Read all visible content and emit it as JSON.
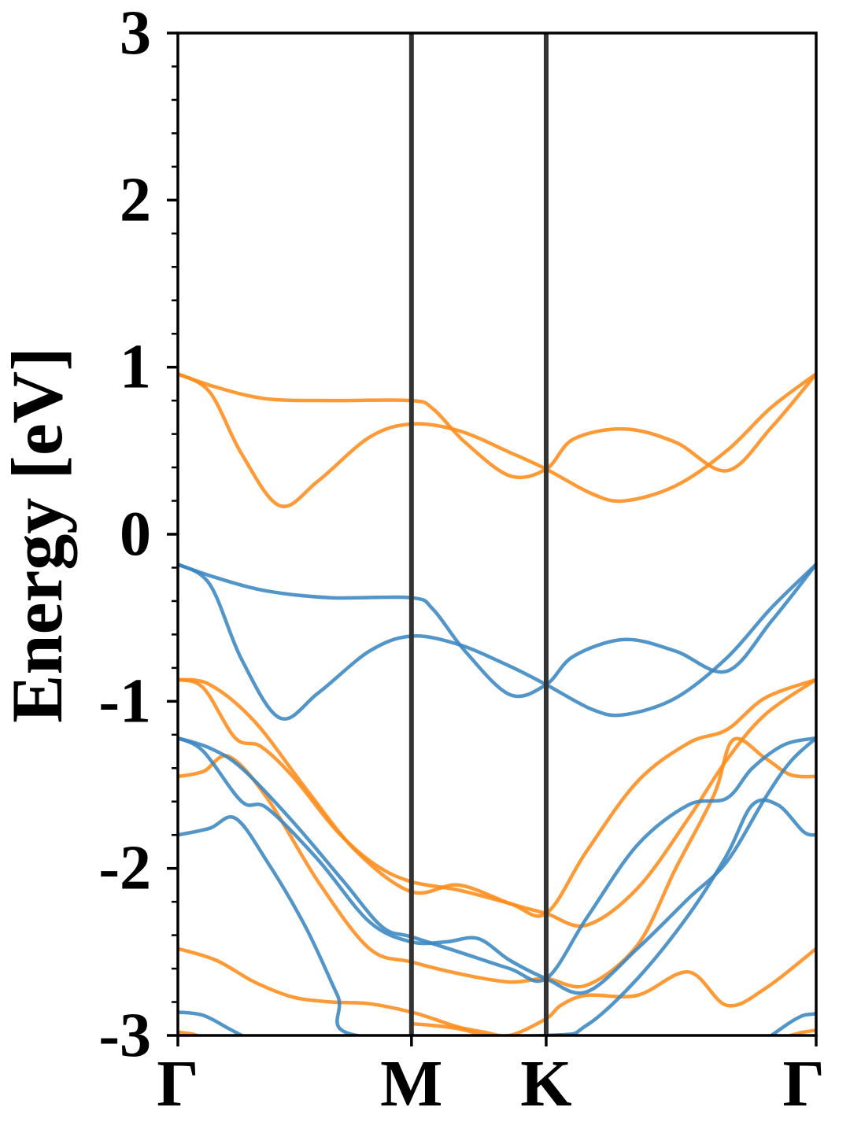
{
  "chart_data": {
    "type": "line",
    "ylabel": "Energy [eV]",
    "xlabel": "",
    "ylim": [
      -3,
      3
    ],
    "xlim": [
      0,
      1
    ],
    "grid": false,
    "legend": "none",
    "yticks": [
      "-3",
      "-2",
      "-1",
      "0",
      "1",
      "2",
      "3"
    ],
    "ytick_values": [
      -3,
      -2,
      -1,
      0,
      1,
      2,
      3
    ],
    "yminor_step": 0.2,
    "kpoints": [
      {
        "label": "Γ",
        "x": 0.0
      },
      {
        "label": "M",
        "x": 0.366
      },
      {
        "label": "K",
        "x": 0.577
      },
      {
        "label": "Γ",
        "x": 1.0
      }
    ],
    "colors": {
      "conduction": "#ff8c1a",
      "valence": "#3a86c2",
      "kpoint_line": "#333333",
      "axis": "#000000"
    },
    "series": [
      {
        "group": "conduction",
        "points": [
          [
            0,
            0.96
          ],
          [
            0.06,
            0.88
          ],
          [
            0.14,
            0.81
          ],
          [
            0.24,
            0.8
          ],
          [
            0.366,
            0.8
          ],
          [
            0.4,
            0.75
          ],
          [
            0.45,
            0.55
          ],
          [
            0.52,
            0.35
          ],
          [
            0.577,
            0.39
          ],
          [
            0.62,
            0.57
          ],
          [
            0.7,
            0.63
          ],
          [
            0.78,
            0.55
          ],
          [
            0.86,
            0.38
          ],
          [
            0.93,
            0.64
          ],
          [
            1.0,
            0.96
          ]
        ]
      },
      {
        "group": "conduction",
        "points": [
          [
            0,
            0.96
          ],
          [
            0.05,
            0.85
          ],
          [
            0.1,
            0.48
          ],
          [
            0.16,
            0.17
          ],
          [
            0.22,
            0.32
          ],
          [
            0.3,
            0.58
          ],
          [
            0.366,
            0.66
          ],
          [
            0.44,
            0.62
          ],
          [
            0.52,
            0.49
          ],
          [
            0.577,
            0.39
          ],
          [
            0.65,
            0.24
          ],
          [
            0.7,
            0.2
          ],
          [
            0.78,
            0.29
          ],
          [
            0.86,
            0.5
          ],
          [
            0.93,
            0.76
          ],
          [
            1.0,
            0.96
          ]
        ]
      },
      {
        "group": "valence",
        "points": [
          [
            0,
            -0.18
          ],
          [
            0.06,
            -0.26
          ],
          [
            0.14,
            -0.34
          ],
          [
            0.24,
            -0.38
          ],
          [
            0.366,
            -0.38
          ],
          [
            0.4,
            -0.45
          ],
          [
            0.45,
            -0.7
          ],
          [
            0.52,
            -0.96
          ],
          [
            0.577,
            -0.9
          ],
          [
            0.62,
            -0.73
          ],
          [
            0.7,
            -0.63
          ],
          [
            0.78,
            -0.7
          ],
          [
            0.86,
            -0.82
          ],
          [
            0.93,
            -0.52
          ],
          [
            1.0,
            -0.18
          ]
        ]
      },
      {
        "group": "valence",
        "points": [
          [
            0,
            -0.18
          ],
          [
            0.05,
            -0.3
          ],
          [
            0.1,
            -0.75
          ],
          [
            0.16,
            -1.1
          ],
          [
            0.22,
            -0.95
          ],
          [
            0.3,
            -0.7
          ],
          [
            0.366,
            -0.61
          ],
          [
            0.44,
            -0.66
          ],
          [
            0.52,
            -0.79
          ],
          [
            0.577,
            -0.9
          ],
          [
            0.65,
            -1.05
          ],
          [
            0.7,
            -1.08
          ],
          [
            0.78,
            -0.98
          ],
          [
            0.86,
            -0.74
          ],
          [
            0.93,
            -0.44
          ],
          [
            1.0,
            -0.18
          ]
        ]
      },
      {
        "group": "conduction",
        "points": [
          [
            0,
            -0.87
          ],
          [
            0.04,
            -0.92
          ],
          [
            0.09,
            -1.22
          ],
          [
            0.13,
            -1.27
          ],
          [
            0.18,
            -1.45
          ],
          [
            0.25,
            -1.78
          ],
          [
            0.31,
            -1.98
          ],
          [
            0.366,
            -2.08
          ],
          [
            0.44,
            -2.13
          ],
          [
            0.52,
            -2.21
          ],
          [
            0.577,
            -2.27
          ],
          [
            0.64,
            -1.9
          ],
          [
            0.72,
            -1.48
          ],
          [
            0.8,
            -1.25
          ],
          [
            0.86,
            -1.17
          ],
          [
            0.92,
            -0.98
          ],
          [
            1.0,
            -0.87
          ]
        ]
      },
      {
        "group": "conduction",
        "points": [
          [
            0,
            -0.87
          ],
          [
            0.05,
            -0.9
          ],
          [
            0.12,
            -1.12
          ],
          [
            0.2,
            -1.52
          ],
          [
            0.28,
            -1.9
          ],
          [
            0.366,
            -2.14
          ],
          [
            0.44,
            -2.1
          ],
          [
            0.52,
            -2.21
          ],
          [
            0.577,
            -2.27
          ],
          [
            0.64,
            -2.34
          ],
          [
            0.72,
            -2.12
          ],
          [
            0.8,
            -1.7
          ],
          [
            0.86,
            -1.35
          ],
          [
            0.92,
            -1.08
          ],
          [
            1.0,
            -0.87
          ]
        ]
      },
      {
        "group": "conduction",
        "points": [
          [
            0,
            -1.45
          ],
          [
            0.04,
            -1.42
          ],
          [
            0.08,
            -1.33
          ],
          [
            0.14,
            -1.58
          ],
          [
            0.22,
            -2.08
          ],
          [
            0.3,
            -2.48
          ],
          [
            0.366,
            -2.56
          ],
          [
            0.44,
            -2.63
          ],
          [
            0.52,
            -2.68
          ],
          [
            0.577,
            -2.66
          ],
          [
            0.64,
            -2.7
          ],
          [
            0.72,
            -2.46
          ],
          [
            0.78,
            -2.0
          ],
          [
            0.84,
            -1.56
          ],
          [
            0.87,
            -1.23
          ],
          [
            0.92,
            -1.34
          ],
          [
            0.96,
            -1.44
          ],
          [
            1.0,
            -1.45
          ]
        ]
      },
      {
        "group": "conduction",
        "points": [
          [
            0,
            -2.48
          ],
          [
            0.06,
            -2.55
          ],
          [
            0.12,
            -2.68
          ],
          [
            0.18,
            -2.77
          ],
          [
            0.24,
            -2.8
          ],
          [
            0.3,
            -2.81
          ],
          [
            0.366,
            -2.86
          ],
          [
            0.4,
            -2.9
          ],
          [
            0.44,
            -2.95
          ],
          [
            0.48,
            -2.98
          ],
          [
            0.52,
            -3.0
          ],
          [
            0.577,
            -2.9
          ],
          [
            0.6,
            -2.82
          ],
          [
            0.64,
            -2.76
          ],
          [
            0.72,
            -2.76
          ],
          [
            0.8,
            -2.62
          ],
          [
            0.86,
            -2.82
          ],
          [
            0.92,
            -2.72
          ],
          [
            1.0,
            -2.48
          ]
        ]
      },
      {
        "group": "valence",
        "points": [
          [
            0,
            -1.22
          ],
          [
            0.05,
            -1.28
          ],
          [
            0.1,
            -1.4
          ],
          [
            0.18,
            -1.72
          ],
          [
            0.26,
            -2.08
          ],
          [
            0.32,
            -2.35
          ],
          [
            0.366,
            -2.41
          ],
          [
            0.44,
            -2.5
          ],
          [
            0.52,
            -2.6
          ],
          [
            0.577,
            -2.66
          ],
          [
            0.64,
            -2.3
          ],
          [
            0.72,
            -1.86
          ],
          [
            0.8,
            -1.62
          ],
          [
            0.86,
            -1.58
          ],
          [
            0.9,
            -1.4
          ],
          [
            0.95,
            -1.26
          ],
          [
            1.0,
            -1.22
          ]
        ]
      },
      {
        "group": "valence",
        "points": [
          [
            0,
            -1.22
          ],
          [
            0.04,
            -1.3
          ],
          [
            0.1,
            -1.6
          ],
          [
            0.14,
            -1.64
          ],
          [
            0.22,
            -1.95
          ],
          [
            0.3,
            -2.32
          ],
          [
            0.366,
            -2.44
          ],
          [
            0.42,
            -2.44
          ],
          [
            0.47,
            -2.42
          ],
          [
            0.52,
            -2.55
          ],
          [
            0.577,
            -2.66
          ],
          [
            0.64,
            -2.74
          ],
          [
            0.72,
            -2.48
          ],
          [
            0.8,
            -2.18
          ],
          [
            0.86,
            -1.96
          ],
          [
            0.92,
            -1.58
          ],
          [
            0.96,
            -1.36
          ],
          [
            1.0,
            -1.22
          ]
        ]
      },
      {
        "group": "valence",
        "points": [
          [
            0,
            -1.8
          ],
          [
            0.05,
            -1.76
          ],
          [
            0.09,
            -1.7
          ],
          [
            0.14,
            -1.96
          ],
          [
            0.2,
            -2.35
          ],
          [
            0.25,
            -2.76
          ],
          [
            0.28,
            -3.0
          ],
          [
            0.577,
            -3.0
          ],
          [
            0.64,
            -2.94
          ],
          [
            0.72,
            -2.66
          ],
          [
            0.8,
            -2.28
          ],
          [
            0.86,
            -1.92
          ],
          [
            0.9,
            -1.62
          ],
          [
            0.94,
            -1.62
          ],
          [
            0.98,
            -1.78
          ],
          [
            1.0,
            -1.8
          ]
        ]
      },
      {
        "group": "valence",
        "points": [
          [
            0,
            -2.86
          ],
          [
            0.04,
            -2.88
          ],
          [
            0.08,
            -2.96
          ],
          [
            0.1,
            -3.0
          ]
        ]
      },
      {
        "group": "valence",
        "points": [
          [
            0.93,
            -3.0
          ],
          [
            0.96,
            -2.92
          ],
          [
            0.98,
            -2.88
          ],
          [
            1.0,
            -2.87
          ]
        ]
      },
      {
        "group": "conduction",
        "points": [
          [
            0,
            -2.98
          ],
          [
            0.02,
            -2.99
          ],
          [
            0.03,
            -3.0
          ]
        ]
      },
      {
        "group": "conduction",
        "points": [
          [
            0.366,
            -2.93
          ],
          [
            0.4,
            -2.94
          ],
          [
            0.44,
            -2.96
          ],
          [
            0.48,
            -3.0
          ]
        ]
      },
      {
        "group": "conduction",
        "points": [
          [
            0.96,
            -3.0
          ],
          [
            0.98,
            -2.98
          ],
          [
            1.0,
            -2.97
          ]
        ]
      }
    ]
  }
}
